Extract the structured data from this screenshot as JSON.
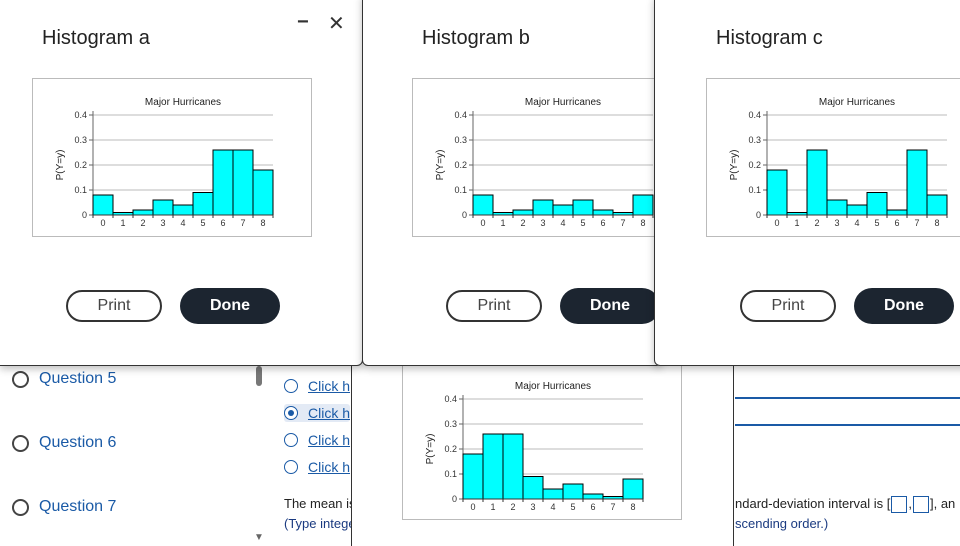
{
  "sidebar": {
    "questions": [
      {
        "label": "Question 5"
      },
      {
        "label": "Question 6"
      },
      {
        "label": "Question 7"
      }
    ]
  },
  "options": [
    {
      "label": "Click h",
      "selected": false
    },
    {
      "label": "Click h",
      "selected": true
    },
    {
      "label": "Click h",
      "selected": false
    },
    {
      "label": "Click h",
      "selected": false
    }
  ],
  "main": {
    "mean_text": "The mean is",
    "hint_text": "(Type intege",
    "interval_text": "ndard-deviation interval is [",
    "interval_sep": ",",
    "interval_close": "], an",
    "interval_hint": "scending order.)"
  },
  "window_controls": {
    "minimize": "−",
    "close": "✕"
  },
  "dialogs": [
    {
      "title": "Histogram a",
      "print_label": "Print",
      "done_label": "Done"
    },
    {
      "title": "Histogram b",
      "print_label": "Print",
      "done_label": "Done"
    },
    {
      "title": "Histogram c",
      "print_label": "Print",
      "done_label": "Done"
    }
  ],
  "colors": {
    "bar_fill": "#00ffff",
    "bar_stroke": "#000000",
    "link": "#1a5aa6",
    "done_bg": "#1c2530"
  },
  "chart_data": [
    {
      "type": "bar",
      "title": "Major Hurricanes",
      "ylabel": "P(Y=y)",
      "xlabel": "",
      "categories": [
        "0",
        "1",
        "2",
        "3",
        "4",
        "5",
        "6",
        "7",
        "8"
      ],
      "values": [
        0.08,
        0.01,
        0.02,
        0.06,
        0.04,
        0.09,
        0.26,
        0.26,
        0.18
      ],
      "ylim": [
        0,
        0.4
      ],
      "yticks": [
        "0",
        "0.1",
        "0.2",
        "0.3",
        "0.4"
      ],
      "grid": true
    },
    {
      "type": "bar",
      "title": "Major Hurricanes",
      "ylabel": "P(Y=y)",
      "xlabel": "",
      "categories": [
        "0",
        "1",
        "2",
        "3",
        "4",
        "5",
        "6",
        "7",
        "8"
      ],
      "values": [
        0.08,
        0.01,
        0.02,
        0.06,
        0.04,
        0.06,
        0.02,
        0.01,
        0.08
      ],
      "ylim": [
        0,
        0.4
      ],
      "yticks": [
        "0",
        "0.1",
        "0.2",
        "0.3",
        "0.4"
      ],
      "grid": true
    },
    {
      "type": "bar",
      "title": "Major Hurricanes",
      "ylabel": "P(Y=y)",
      "xlabel": "",
      "categories": [
        "0",
        "1",
        "2",
        "3",
        "4",
        "5",
        "6",
        "7",
        "8"
      ],
      "values": [
        0.18,
        0.01,
        0.26,
        0.06,
        0.04,
        0.09,
        0.02,
        0.26,
        0.08
      ],
      "ylim": [
        0,
        0.4
      ],
      "yticks": [
        "0",
        "0.1",
        "0.2",
        "0.3",
        "0.4"
      ],
      "grid": true
    },
    {
      "type": "bar",
      "title": "Major Hurricanes",
      "ylabel": "P(Y=y)",
      "xlabel": "",
      "categories": [
        "0",
        "1",
        "2",
        "3",
        "4",
        "5",
        "6",
        "7",
        "8"
      ],
      "values": [
        0.18,
        0.26,
        0.26,
        0.09,
        0.04,
        0.06,
        0.02,
        0.01,
        0.08
      ],
      "ylim": [
        0,
        0.4
      ],
      "yticks": [
        "0",
        "0.1",
        "0.2",
        "0.3",
        "0.4"
      ],
      "grid": true
    }
  ]
}
